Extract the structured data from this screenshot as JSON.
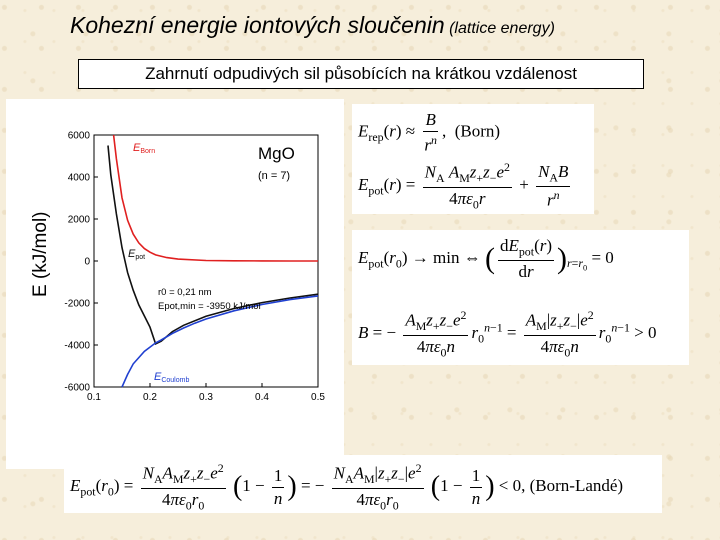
{
  "slide": {
    "title_main": "Kohezní energie iontových sloučenin",
    "title_sub": " (lattice energy)",
    "subtitle": "Zahrnutí odpudivých sil působících na krátkou vzdálenost"
  },
  "chart_data": {
    "type": "line",
    "title": "MgO",
    "subtitle": "(n = 7)",
    "ylabel": "E (kJ/mol)",
    "xlabel": "",
    "xlim": [
      0.1,
      0.5
    ],
    "ylim": [
      -6000,
      6000
    ],
    "xticks": [
      "0.1",
      "0.2",
      "0.3",
      "0.4",
      "0.5"
    ],
    "yticks": [
      "-6000",
      "-4000",
      "-2000",
      "0",
      "2000",
      "4000",
      "6000"
    ],
    "grid": false,
    "series": [
      {
        "name": "EBorn",
        "color": "#e02020",
        "x": [
          0.135,
          0.14,
          0.15,
          0.16,
          0.17,
          0.18,
          0.19,
          0.2,
          0.21,
          0.23,
          0.25,
          0.3,
          0.35,
          0.4,
          0.45,
          0.5
        ],
        "y": [
          6000,
          4860,
          3010,
          1940,
          1280,
          860,
          590,
          420,
          290,
          160,
          90,
          25,
          9,
          3,
          1,
          0
        ]
      },
      {
        "name": "Epot",
        "color": "#111111",
        "x": [
          0.125,
          0.13,
          0.14,
          0.15,
          0.16,
          0.17,
          0.18,
          0.19,
          0.2,
          0.21,
          0.22,
          0.24,
          0.26,
          0.3,
          0.35,
          0.4,
          0.45,
          0.5
        ],
        "y": [
          5500,
          4100,
          2240,
          640,
          -550,
          -1390,
          -2090,
          -2620,
          -3150,
          -3950,
          -3820,
          -3360,
          -3060,
          -2630,
          -2260,
          -1980,
          -1760,
          -1580
        ]
      },
      {
        "name": "ECoulomb",
        "color": "#2040d0",
        "x": [
          0.15,
          0.16,
          0.17,
          0.18,
          0.19,
          0.2,
          0.21,
          0.22,
          0.24,
          0.26,
          0.28,
          0.3,
          0.35,
          0.4,
          0.45,
          0.5
        ],
        "y": [
          -6000,
          -5400,
          -4900,
          -4600,
          -4300,
          -4100,
          -3900,
          -3760,
          -3450,
          -3190,
          -2960,
          -2760,
          -2370,
          -2070,
          -1840,
          -1660
        ]
      }
    ],
    "annotations": {
      "r0": "r0 = 0,21 nm",
      "epot_min": "Epot,min = -3950 kJ/mol"
    }
  },
  "equations": {
    "born_label": "(Born)",
    "min_arrow": "→ min",
    "eq_zero": "= 0",
    "gt_zero": "> 0",
    "born_lande_label": "(Born-Landé)",
    "lt_zero": "< 0,"
  }
}
